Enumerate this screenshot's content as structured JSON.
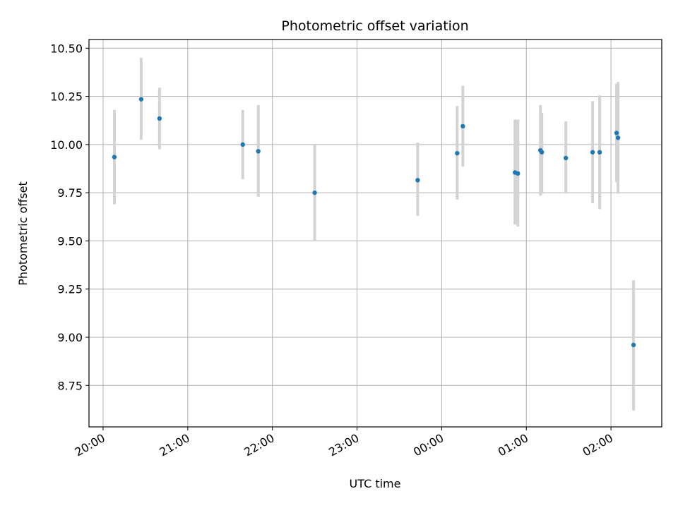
{
  "chart_data": {
    "type": "scatter",
    "title": "Photometric offset variation",
    "xlabel": "UTC time",
    "ylabel": "Photometric offset",
    "x_ticks": [
      "20:00",
      "21:00",
      "22:00",
      "23:00",
      "00:00",
      "01:00",
      "02:00"
    ],
    "y_ticks": [
      "8.75",
      "9.00",
      "9.25",
      "9.50",
      "9.75",
      "10.00",
      "10.25",
      "10.50"
    ],
    "x_range": [
      "19:50",
      "02:36"
    ],
    "ylim": [
      8.535,
      10.545
    ],
    "grid": true,
    "colors": {
      "point": "#1f77b4",
      "errorbar": "#d3d3d3",
      "grid": "#b0b0b0"
    },
    "series": [
      {
        "points": [
          {
            "x": "20:08",
            "y": 9.935,
            "ylo": 9.69,
            "yhi": 10.18
          },
          {
            "x": "20:27",
            "y": 10.235,
            "ylo": 10.025,
            "yhi": 10.45
          },
          {
            "x": "20:40",
            "y": 10.135,
            "ylo": 9.975,
            "yhi": 10.295
          },
          {
            "x": "21:39",
            "y": 10.0,
            "ylo": 9.82,
            "yhi": 10.18
          },
          {
            "x": "21:50",
            "y": 9.965,
            "ylo": 9.73,
            "yhi": 10.205
          },
          {
            "x": "22:30",
            "y": 9.75,
            "ylo": 9.5,
            "yhi": 10.0
          },
          {
            "x": "23:43",
            "y": 9.815,
            "ylo": 9.63,
            "yhi": 10.01
          },
          {
            "x": "00:11",
            "y": 9.955,
            "ylo": 9.715,
            "yhi": 10.2
          },
          {
            "x": "00:15",
            "y": 10.095,
            "ylo": 9.885,
            "yhi": 10.305
          },
          {
            "x": "00:52",
            "y": 9.855,
            "ylo": 9.585,
            "yhi": 10.13
          },
          {
            "x": "00:54",
            "y": 9.85,
            "ylo": 9.575,
            "yhi": 10.13
          },
          {
            "x": "01:10",
            "y": 9.97,
            "ylo": 9.735,
            "yhi": 10.205
          },
          {
            "x": "01:11",
            "y": 9.96,
            "ylo": 9.745,
            "yhi": 10.165
          },
          {
            "x": "01:28",
            "y": 9.93,
            "ylo": 9.745,
            "yhi": 10.12
          },
          {
            "x": "01:47",
            "y": 9.96,
            "ylo": 9.695,
            "yhi": 10.225
          },
          {
            "x": "01:52",
            "y": 9.96,
            "ylo": 9.665,
            "yhi": 10.255
          },
          {
            "x": "02:04",
            "y": 10.06,
            "ylo": 9.805,
            "yhi": 10.315
          },
          {
            "x": "02:05",
            "y": 10.035,
            "ylo": 9.745,
            "yhi": 10.325
          },
          {
            "x": "02:16",
            "y": 8.96,
            "ylo": 8.62,
            "yhi": 9.295
          }
        ]
      }
    ]
  }
}
